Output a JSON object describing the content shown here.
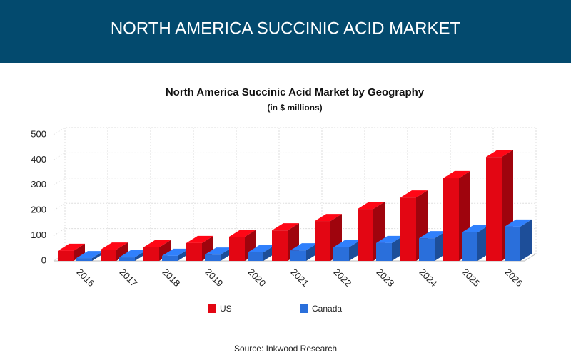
{
  "header": {
    "title": "NORTH AMERICA SUCCINIC ACID MARKET"
  },
  "chart_data": {
    "type": "bar3d",
    "title": "North America Succinic Acid Market by Geography",
    "subtitle": "(in $ millions)",
    "categories": [
      "2016",
      "2017",
      "2018",
      "2019",
      "2020",
      "2021",
      "2022",
      "2023",
      "2024",
      "2025",
      "2026"
    ],
    "series": [
      {
        "name": "US",
        "color": "#e30613",
        "values": [
          40,
          45,
          54,
          71,
          96,
          121,
          158,
          206,
          251,
          328,
          412
        ]
      },
      {
        "name": "Canada",
        "color": "#2a6fdb",
        "values": [
          11,
          14,
          20,
          25,
          34,
          42,
          54,
          71,
          90,
          113,
          136
        ]
      }
    ],
    "ylim": [
      0,
      500
    ],
    "yticks": [
      0,
      100,
      200,
      300,
      400,
      500
    ],
    "grid": true
  },
  "footer": {
    "source": "Source: Inkwood Research"
  }
}
